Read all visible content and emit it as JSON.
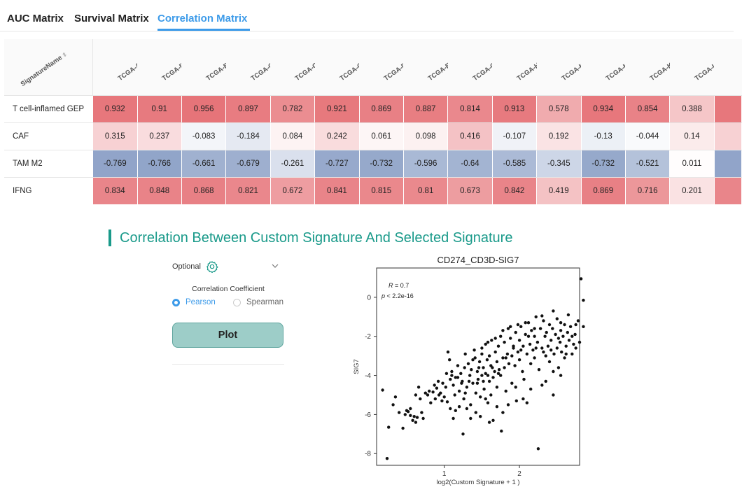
{
  "tabs": [
    {
      "label": "AUC Matrix",
      "active": false
    },
    {
      "label": "Survival Matrix",
      "active": false
    },
    {
      "label": "Correlation Matrix",
      "active": true
    }
  ],
  "matrix": {
    "name_header": "SignatureName",
    "columns": [
      "TCGA-ACC",
      "TCGA-BLCA",
      "TCGA-BRCA",
      "TCGA-CESC",
      "TCGA-CHOL",
      "TCGA-COAD",
      "TCGA-DLBC",
      "TCGA-ESCA",
      "TCGA-GBM",
      "TCGA-HNSC",
      "TCGA-KICH",
      "TCGA-KIRC",
      "TCGA-KIRP",
      "TCGA-LAML"
    ],
    "rows": [
      {
        "name": "T cell-inflamed GEP",
        "values": [
          "0.932",
          "0.91",
          "0.956",
          "0.897",
          "0.782",
          "0.921",
          "0.869",
          "0.887",
          "0.814",
          "0.913",
          "0.578",
          "0.934",
          "0.854",
          "0.388"
        ]
      },
      {
        "name": "CAF",
        "values": [
          "0.315",
          "0.237",
          "-0.083",
          "-0.184",
          "0.084",
          "0.242",
          "0.061",
          "0.098",
          "0.416",
          "-0.107",
          "0.192",
          "-0.13",
          "-0.044",
          "0.14"
        ]
      },
      {
        "name": "TAM M2",
        "values": [
          "-0.769",
          "-0.766",
          "-0.661",
          "-0.679",
          "-0.261",
          "-0.727",
          "-0.732",
          "-0.596",
          "-0.64",
          "-0.585",
          "-0.345",
          "-0.732",
          "-0.521",
          "0.011"
        ]
      },
      {
        "name": "IFNG",
        "values": [
          "0.834",
          "0.848",
          "0.868",
          "0.821",
          "0.672",
          "0.841",
          "0.815",
          "0.81",
          "0.673",
          "0.842",
          "0.419",
          "0.869",
          "0.716",
          "0.201"
        ]
      }
    ],
    "colors": {
      "positive": "#e67378",
      "negative": "#8fa3c8",
      "neutral": "#ffffff"
    }
  },
  "section": {
    "title": "Correlation Between Custom Signature And Selected Signature"
  },
  "controls": {
    "optional_label": "Optional",
    "coefficient_label": "Correlation Coefficient",
    "options": [
      "Pearson",
      "Spearman"
    ],
    "selected": "Pearson",
    "plot_label": "Plot",
    "accent": "#3d9be9",
    "button_color": "#9dcdc8"
  },
  "chart_data": {
    "type": "scatter",
    "title": "CD274_CD3D-SIG7",
    "xlabel": "log2(Custom Signature + 1 )",
    "ylabel": "SIG7",
    "xlim": [
      0.1,
      2.8
    ],
    "ylim": [
      -8.6,
      1.5
    ],
    "xticks": [
      "1",
      "2"
    ],
    "yticks": [
      "0",
      "-2",
      "-4",
      "-6",
      "-8"
    ],
    "annotation": {
      "r_label": "R",
      "r_value": "= 0.7",
      "p_label": "p",
      "p_value": "< 2.2e-16"
    },
    "points": [
      [
        0.18,
        -4.75
      ],
      [
        0.24,
        -8.25
      ],
      [
        0.26,
        -6.65
      ],
      [
        0.32,
        -5.5
      ],
      [
        0.35,
        -5.1
      ],
      [
        0.45,
        -6.7
      ],
      [
        0.48,
        -6.0
      ],
      [
        0.5,
        -5.8
      ],
      [
        0.52,
        -5.85
      ],
      [
        0.55,
        -6.05
      ],
      [
        0.58,
        -6.3
      ],
      [
        0.6,
        -6.1
      ],
      [
        0.62,
        -6.4
      ],
      [
        0.64,
        -6.15
      ],
      [
        0.66,
        -4.6
      ],
      [
        0.7,
        -5.9
      ],
      [
        0.72,
        -6.2
      ],
      [
        0.78,
        -5.0
      ],
      [
        0.8,
        -4.8
      ],
      [
        0.82,
        -5.4
      ],
      [
        0.85,
        -4.85
      ],
      [
        0.88,
        -5.2
      ],
      [
        0.9,
        -4.65
      ],
      [
        0.93,
        -5.0
      ],
      [
        0.95,
        -4.9
      ],
      [
        0.97,
        -5.3
      ],
      [
        1.0,
        -5.1
      ],
      [
        1.02,
        -4.6
      ],
      [
        1.04,
        -5.35
      ],
      [
        1.05,
        -2.8
      ],
      [
        1.07,
        -3.2
      ],
      [
        1.08,
        -4.2
      ],
      [
        1.1,
        -3.8
      ],
      [
        1.12,
        -4.5
      ],
      [
        1.14,
        -5.0
      ],
      [
        1.15,
        -4.1
      ],
      [
        1.18,
        -3.5
      ],
      [
        1.2,
        -4.8
      ],
      [
        1.22,
        -3.9
      ],
      [
        1.24,
        -4.3
      ],
      [
        1.25,
        -7.0
      ],
      [
        1.26,
        -5.2
      ],
      [
        1.28,
        -2.9
      ],
      [
        1.3,
        -4.6
      ],
      [
        1.32,
        -3.4
      ],
      [
        1.34,
        -4.0
      ],
      [
        1.35,
        -5.5
      ],
      [
        1.36,
        -3.7
      ],
      [
        1.38,
        -4.4
      ],
      [
        1.4,
        -2.7
      ],
      [
        1.41,
        -3.1
      ],
      [
        1.42,
        -4.9
      ],
      [
        1.44,
        -3.8
      ],
      [
        1.45,
        -4.2
      ],
      [
        1.47,
        -3.3
      ],
      [
        1.48,
        -5.1
      ],
      [
        1.5,
        -2.6
      ],
      [
        1.5,
        -4.0
      ],
      [
        1.52,
        -3.6
      ],
      [
        1.53,
        -4.7
      ],
      [
        1.55,
        -2.4
      ],
      [
        1.55,
        -3.9
      ],
      [
        1.57,
        -3.2
      ],
      [
        1.58,
        -5.4
      ],
      [
        1.6,
        -3.0
      ],
      [
        1.6,
        -4.3
      ],
      [
        1.62,
        -3.5
      ],
      [
        1.63,
        -2.2
      ],
      [
        1.65,
        -4.1
      ],
      [
        1.65,
        -6.3
      ],
      [
        1.67,
        -3.8
      ],
      [
        1.68,
        -2.8
      ],
      [
        1.7,
        -3.3
      ],
      [
        1.7,
        -4.6
      ],
      [
        1.72,
        -2.5
      ],
      [
        1.73,
        -3.7
      ],
      [
        1.75,
        -2.0
      ],
      [
        1.75,
        -4.0
      ],
      [
        1.76,
        -6.85
      ],
      [
        1.78,
        -3.1
      ],
      [
        1.8,
        -2.3
      ],
      [
        1.8,
        -3.6
      ],
      [
        1.82,
        -4.8
      ],
      [
        1.84,
        -2.9
      ],
      [
        1.85,
        -1.6
      ],
      [
        1.86,
        -3.4
      ],
      [
        1.88,
        -2.1
      ],
      [
        1.9,
        -3.0
      ],
      [
        1.9,
        -4.4
      ],
      [
        1.92,
        -2.6
      ],
      [
        1.94,
        -3.5
      ],
      [
        1.95,
        -1.8
      ],
      [
        1.96,
        -5.3
      ],
      [
        1.98,
        -2.8
      ],
      [
        2.0,
        -3.2
      ],
      [
        2.0,
        -2.2
      ],
      [
        2.02,
        -1.5
      ],
      [
        2.04,
        -3.8
      ],
      [
        2.05,
        -2.5
      ],
      [
        2.06,
        -4.2
      ],
      [
        2.08,
        -1.9
      ],
      [
        2.1,
        -2.9
      ],
      [
        2.1,
        -5.4
      ],
      [
        2.12,
        -1.3
      ],
      [
        2.14,
        -2.4
      ],
      [
        2.15,
        -3.4
      ],
      [
        2.16,
        -1.7
      ],
      [
        2.18,
        -2.7
      ],
      [
        2.2,
        -2.0
      ],
      [
        2.2,
        -3.1
      ],
      [
        2.22,
        -1.0
      ],
      [
        2.24,
        -2.3
      ],
      [
        2.25,
        -7.75
      ],
      [
        2.26,
        -3.7
      ],
      [
        2.28,
        -1.6
      ],
      [
        2.3,
        -2.6
      ],
      [
        2.3,
        -4.5
      ],
      [
        2.32,
        -1.2
      ],
      [
        2.34,
        -2.0
      ],
      [
        2.35,
        -3.0
      ],
      [
        2.36,
        -1.8
      ],
      [
        2.38,
        -2.5
      ],
      [
        2.4,
        -1.4
      ],
      [
        2.4,
        -3.3
      ],
      [
        2.42,
        -2.2
      ],
      [
        2.44,
        -1.6
      ],
      [
        2.45,
        -5.0
      ],
      [
        2.46,
        -2.9
      ],
      [
        2.48,
        -1.9
      ],
      [
        2.5,
        -2.6
      ],
      [
        2.5,
        -1.1
      ],
      [
        2.52,
        -3.6
      ],
      [
        2.54,
        -2.3
      ],
      [
        2.55,
        -1.7
      ],
      [
        2.56,
        -2.8
      ],
      [
        2.58,
        -2.0
      ],
      [
        2.6,
        -1.4
      ],
      [
        2.6,
        -3.1
      ],
      [
        2.62,
        -2.5
      ],
      [
        2.64,
        -1.8
      ],
      [
        2.66,
        -2.2
      ],
      [
        2.68,
        -1.5
      ],
      [
        2.7,
        -2.9
      ],
      [
        2.72,
        -2.4
      ],
      [
        2.74,
        -1.9
      ],
      [
        2.75,
        -2.6
      ],
      [
        1.15,
        -5.8
      ],
      [
        1.2,
        -5.6
      ],
      [
        1.3,
        -5.7
      ],
      [
        1.42,
        -5.9
      ],
      [
        1.55,
        -5.2
      ],
      [
        1.62,
        -5.0
      ],
      [
        1.7,
        -5.6
      ],
      [
        1.85,
        -5.5
      ],
      [
        1.95,
        -4.6
      ],
      [
        2.05,
        -5.2
      ],
      [
        2.15,
        -4.7
      ],
      [
        2.35,
        -4.3
      ],
      [
        2.45,
        -3.8
      ],
      [
        2.55,
        -4.0
      ],
      [
        1.35,
        -6.2
      ],
      [
        1.48,
        -6.1
      ],
      [
        1.6,
        -6.4
      ],
      [
        1.78,
        -5.9
      ],
      [
        2.75,
        -1.4
      ],
      [
        2.8,
        -2.3
      ],
      [
        2.82,
        0.95
      ],
      [
        2.85,
        -0.15
      ],
      [
        2.85,
        -1.5
      ],
      [
        2.78,
        -1.2
      ],
      [
        2.65,
        -0.9
      ],
      [
        2.55,
        -1.3
      ],
      [
        2.45,
        -0.7
      ],
      [
        2.3,
        -0.95
      ],
      [
        2.2,
        -1.6
      ],
      [
        2.08,
        -1.3
      ],
      [
        1.98,
        -1.4
      ],
      [
        1.88,
        -1.5
      ],
      [
        1.78,
        -1.7
      ],
      [
        1.68,
        -2.1
      ],
      [
        1.58,
        -2.3
      ],
      [
        1.5,
        -2.9
      ],
      [
        1.46,
        -3.6
      ],
      [
        1.38,
        -3.2
      ],
      [
        1.33,
        -4.3
      ],
      [
        1.27,
        -3.6
      ],
      [
        1.23,
        -4.4
      ],
      [
        1.18,
        -4.1
      ],
      [
        1.1,
        -4.0
      ],
      [
        1.03,
        -3.9
      ],
      [
        0.98,
        -4.4
      ],
      [
        0.92,
        -4.3
      ],
      [
        0.87,
        -4.5
      ],
      [
        0.75,
        -4.9
      ],
      [
        0.68,
        -5.2
      ],
      [
        0.62,
        -5.0
      ],
      [
        0.55,
        -5.7
      ],
      [
        0.4,
        -5.9
      ],
      [
        1.12,
        -6.2
      ],
      [
        1.08,
        -5.7
      ],
      [
        1.28,
        -4.9
      ],
      [
        1.44,
        -4.4
      ],
      [
        1.52,
        -4.3
      ],
      [
        1.58,
        -4.0
      ],
      [
        1.64,
        -3.6
      ],
      [
        1.72,
        -3.9
      ],
      [
        1.82,
        -3.1
      ],
      [
        1.92,
        -2.5
      ],
      [
        2.02,
        -2.7
      ],
      [
        2.12,
        -2.0
      ],
      [
        2.22,
        -2.6
      ],
      [
        2.32,
        -2.8
      ],
      [
        2.42,
        -2.7
      ],
      [
        2.52,
        -2.1
      ],
      [
        2.62,
        -2.9
      ],
      [
        2.7,
        -2.0
      ]
    ]
  }
}
